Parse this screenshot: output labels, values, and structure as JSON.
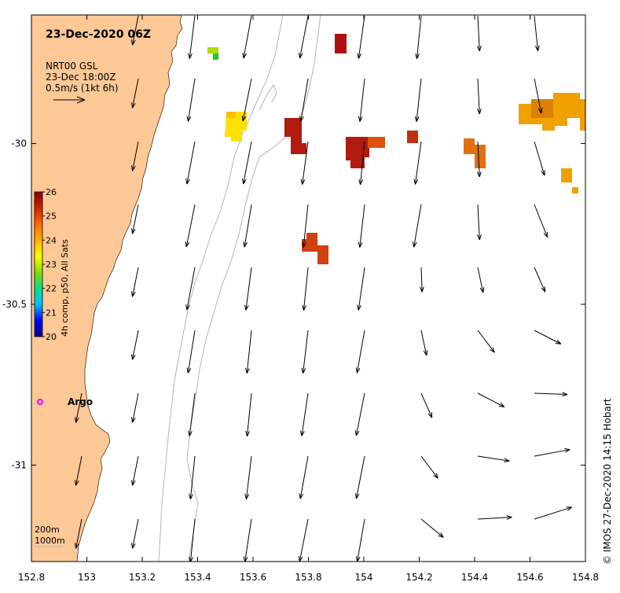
{
  "map": {
    "title": "23-Dec-2020 06Z",
    "vector_legend": {
      "line1": "NRT00 GSL",
      "line2": "23-Dec 18:00Z",
      "line3": "0.5m/s (1kt 6h)"
    },
    "colorbar": {
      "label": "4h comp, p50, All Sats",
      "min": 20,
      "max": 26,
      "ticks": [
        "26",
        "25",
        "24",
        "23",
        "22",
        "21",
        "20"
      ],
      "colors": [
        "#00008b",
        "#0000ff",
        "#00bfff",
        "#00e08a",
        "#7fdf00",
        "#ffff00",
        "#ffb000",
        "#ff6a00",
        "#cc2200",
        "#8b0000"
      ]
    },
    "argo": {
      "label": "Argo",
      "color": "#ff00ff"
    },
    "depth_legend": {
      "line1": "200m",
      "line2": "1000m"
    },
    "credit": "© IMOS 27-Dec-2020 14:15 Hobart",
    "x_axis": {
      "range": [
        152.8,
        154.8
      ],
      "ticks": [
        "152.8",
        "153",
        "153.2",
        "153.4",
        "153.6",
        "153.8",
        "154",
        "154.2",
        "154.4",
        "154.6",
        "154.8"
      ]
    },
    "y_axis": {
      "range": [
        -31.3,
        -29.6
      ],
      "ticks": [
        "-30",
        "-30.5",
        "-31"
      ]
    },
    "colors": {
      "land": "#fcc896",
      "isobath": "#b4b4b4",
      "vector": "#000000"
    }
  }
}
